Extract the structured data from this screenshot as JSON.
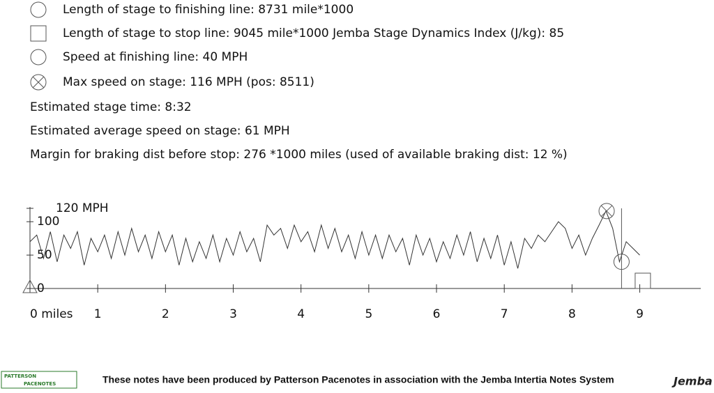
{
  "info": {
    "finish_length": "Length of stage to finishing line: 8731 mile*1000",
    "stop_length": "Length of stage to stop line: 9045 mile*1000 Jemba Stage Dynamics Index (J/kg): 85",
    "finish_speed": "Speed at finishing line: 40 MPH",
    "max_speed": "Max speed on stage: 116 MPH (pos: 8511)",
    "stage_time": "Estimated stage time: 8:32",
    "average_speed": "Estimated average speed on stage: 61 MPH",
    "braking_margin": "Margin for braking dist before stop: 276 *1000 miles (used of available braking dist: 12 %)"
  },
  "chart_data": {
    "type": "line",
    "color": "#333333",
    "xlim": [
      0,
      9.9
    ],
    "ylim": [
      0,
      120
    ],
    "xticks": [
      {
        "value": 0,
        "label": "0 miles"
      },
      1,
      2,
      3,
      4,
      5,
      6,
      7,
      8,
      9
    ],
    "yticks": [
      0,
      50,
      100,
      {
        "value": 120,
        "label": "120 MPH"
      }
    ],
    "x": [
      0,
      0.1,
      0.2,
      0.3,
      0.4,
      0.5,
      0.6,
      0.7,
      0.8,
      0.9,
      1,
      1.1,
      1.2,
      1.3,
      1.4,
      1.5,
      1.6,
      1.7,
      1.8,
      1.9,
      2,
      2.1,
      2.2,
      2.3,
      2.4,
      2.5,
      2.6,
      2.7,
      2.8,
      2.9,
      3,
      3.1,
      3.2,
      3.3,
      3.4,
      3.5,
      3.6,
      3.7,
      3.8,
      3.9,
      4,
      4.1,
      4.2,
      4.3,
      4.4,
      4.5,
      4.6,
      4.7,
      4.8,
      4.9,
      5,
      5.1,
      5.2,
      5.3,
      5.4,
      5.5,
      5.6,
      5.7,
      5.8,
      5.9,
      6,
      6.1,
      6.2,
      6.3,
      6.4,
      6.5,
      6.6,
      6.7,
      6.8,
      6.9,
      7,
      7.1,
      7.2,
      7.3,
      7.4,
      7.5,
      7.6,
      7.7,
      7.8,
      7.9,
      8,
      8.1,
      8.2,
      8.3,
      8.4,
      8.5,
      8.6,
      8.7,
      8.8,
      8.9,
      9
    ],
    "values": [
      70,
      80,
      45,
      85,
      40,
      80,
      60,
      85,
      35,
      75,
      55,
      80,
      45,
      85,
      50,
      90,
      55,
      80,
      45,
      85,
      55,
      80,
      35,
      75,
      40,
      70,
      45,
      80,
      40,
      75,
      50,
      85,
      55,
      75,
      40,
      95,
      80,
      90,
      60,
      95,
      70,
      85,
      55,
      95,
      60,
      90,
      55,
      80,
      45,
      85,
      50,
      80,
      45,
      80,
      55,
      75,
      35,
      80,
      50,
      75,
      40,
      70,
      45,
      80,
      50,
      85,
      40,
      75,
      45,
      80,
      35,
      70,
      30,
      75,
      60,
      80,
      70,
      85,
      100,
      90,
      60,
      80,
      50,
      75,
      95,
      116,
      90,
      40,
      70,
      60,
      50
    ],
    "finish": {
      "x": 8.731,
      "y": 40
    },
    "stop": {
      "x": 9.045,
      "y": 0
    },
    "max": {
      "x": 8.511,
      "y": 116
    }
  },
  "footer": {
    "text": "These notes have been produced by Patterson Pacenotes in association with the Jemba Intertia Notes System",
    "left_logo_top": "PATTERSON",
    "left_logo_bottom": "PACENOTES",
    "right_logo": "Jemba"
  }
}
